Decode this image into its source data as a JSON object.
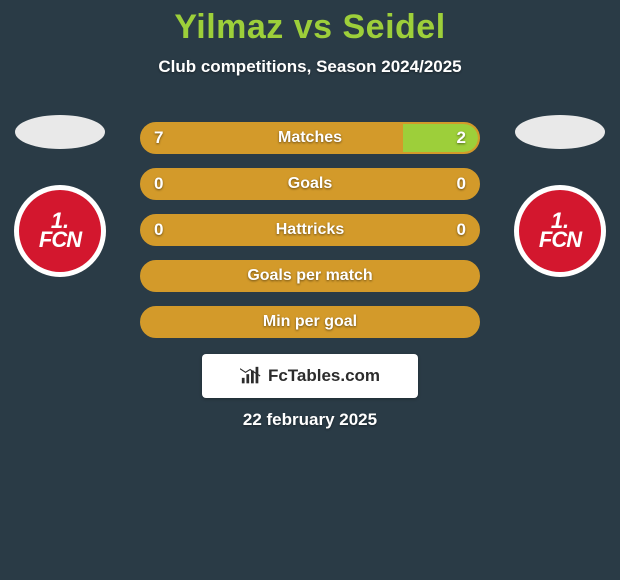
{
  "background_color": "#2a3b46",
  "title": {
    "text": "Yilmaz vs Seidel",
    "color": "#9dcf3a",
    "fontsize": 34
  },
  "subtitle": {
    "text": "Club competitions, Season 2024/2025",
    "color": "#ffffff",
    "fontsize": 17
  },
  "date": {
    "text": "22 february 2025",
    "color": "#ffffff"
  },
  "watermark": {
    "text": "FcTables.com",
    "bg_color": "#ffffff",
    "text_color": "#2c2c2c",
    "icon_color": "#2c2c2c"
  },
  "bar_style": {
    "border_color": "#d39a2a",
    "label_color": "#ffffff",
    "value_color": "#ffffff",
    "left_fill_color": "#d39a2a",
    "right_fill_color": "#9dcf3a",
    "empty_color_left": "#d39a2a",
    "empty_color_right": "#d39a2a"
  },
  "player_left": {
    "oval_color": "#e9e9e9",
    "badge_outer": "#ffffff",
    "badge_inner": "#d3172e",
    "badge_text_top": "1.",
    "badge_text_bottom": "FCN",
    "badge_text_color": "#ffffff"
  },
  "player_right": {
    "oval_color": "#e9e9e9",
    "badge_outer": "#ffffff",
    "badge_inner": "#d3172e",
    "badge_text_top": "1.",
    "badge_text_bottom": "FCN",
    "badge_text_color": "#ffffff"
  },
  "stats": [
    {
      "label": "Matches",
      "left_value": "7",
      "right_value": "2",
      "left_pct": 77.8,
      "right_pct": 22.2
    },
    {
      "label": "Goals",
      "left_value": "0",
      "right_value": "0",
      "left_pct": 0,
      "right_pct": 0
    },
    {
      "label": "Hattricks",
      "left_value": "0",
      "right_value": "0",
      "left_pct": 0,
      "right_pct": 0
    },
    {
      "label": "Goals per match",
      "left_value": "",
      "right_value": "",
      "left_pct": 0,
      "right_pct": 0
    },
    {
      "label": "Min per goal",
      "left_value": "",
      "right_value": "",
      "left_pct": 0,
      "right_pct": 0
    }
  ]
}
